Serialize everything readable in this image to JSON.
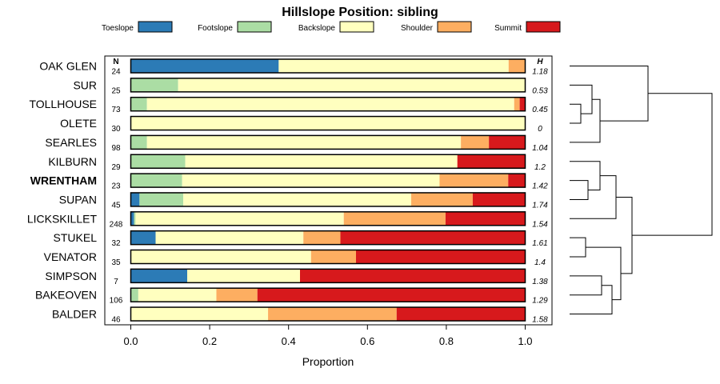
{
  "chart_data": {
    "type": "bar",
    "stacked": true,
    "orientation": "horizontal",
    "title": "Hillslope Position: sibling",
    "xlabel": "Proportion",
    "ylabel": "",
    "xlim": [
      0,
      1
    ],
    "x_ticks": [
      "0.0",
      "0.2",
      "0.4",
      "0.6",
      "0.8",
      "1.0"
    ],
    "n_header": "N",
    "h_header": "H",
    "highlight": "WRENTHAM",
    "legend_position": "top",
    "series": [
      {
        "name": "Toeslope",
        "color": "#2c7bb6"
      },
      {
        "name": "Footslope",
        "color": "#abdda4"
      },
      {
        "name": "Backslope",
        "color": "#ffffbf"
      },
      {
        "name": "Shoulder",
        "color": "#fdae61"
      },
      {
        "name": "Summit",
        "color": "#d7191c"
      }
    ],
    "rows": [
      {
        "label": "OAK GLEN",
        "n": "24",
        "h": "1.18",
        "values": [
          0.375,
          0.0,
          0.583,
          0.042,
          0.0
        ]
      },
      {
        "label": "SUR",
        "n": "25",
        "h": "0.53",
        "values": [
          0.0,
          0.12,
          0.88,
          0.0,
          0.0
        ]
      },
      {
        "label": "TOLLHOUSE",
        "n": "73",
        "h": "0.45",
        "values": [
          0.0,
          0.041,
          0.932,
          0.014,
          0.014
        ]
      },
      {
        "label": "OLETE",
        "n": "30",
        "h": "0",
        "values": [
          0.0,
          0.0,
          1.0,
          0.0,
          0.0
        ]
      },
      {
        "label": "SEARLES",
        "n": "98",
        "h": "1.04",
        "values": [
          0.0,
          0.041,
          0.796,
          0.071,
          0.092
        ]
      },
      {
        "label": "KILBURN",
        "n": "29",
        "h": "1.2",
        "values": [
          0.0,
          0.138,
          0.69,
          0.0,
          0.172
        ]
      },
      {
        "label": "WRENTHAM",
        "n": "23",
        "h": "1.42",
        "values": [
          0.0,
          0.13,
          0.652,
          0.174,
          0.043
        ]
      },
      {
        "label": "SUPAN",
        "n": "45",
        "h": "1.74",
        "values": [
          0.022,
          0.111,
          0.578,
          0.156,
          0.133
        ]
      },
      {
        "label": "LICKSKILLET",
        "n": "248",
        "h": "1.54",
        "values": [
          0.008,
          0.004,
          0.528,
          0.258,
          0.202
        ]
      },
      {
        "label": "STUKEL",
        "n": "32",
        "h": "1.61",
        "values": [
          0.063,
          0.0,
          0.375,
          0.094,
          0.469
        ]
      },
      {
        "label": "VENATOR",
        "n": "35",
        "h": "1.4",
        "values": [
          0.0,
          0.0,
          0.457,
          0.114,
          0.429
        ]
      },
      {
        "label": "SIMPSON",
        "n": "7",
        "h": "1.38",
        "values": [
          0.143,
          0.0,
          0.286,
          0.0,
          0.571
        ]
      },
      {
        "label": "BAKEOVEN",
        "n": "106",
        "h": "1.29",
        "values": [
          0.0,
          0.019,
          0.198,
          0.104,
          0.679
        ]
      },
      {
        "label": "BALDER",
        "n": "46",
        "h": "1.58",
        "values": [
          0.0,
          0.0,
          0.348,
          0.326,
          0.326
        ]
      }
    ]
  }
}
